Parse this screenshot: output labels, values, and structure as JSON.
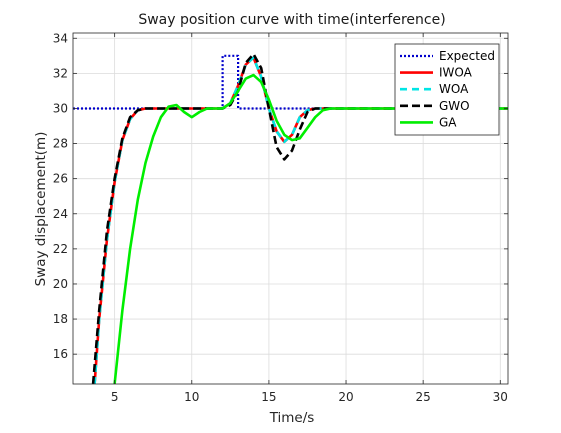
{
  "chart_data": {
    "type": "line",
    "title": "Sway position curve with time(interference)",
    "xlabel": "Time/s",
    "ylabel": "Sway displacement(m)",
    "xlim": [
      2.3,
      30.5
    ],
    "ylim": [
      14.3,
      34.3
    ],
    "xticks": [
      5,
      10,
      15,
      20,
      25,
      30
    ],
    "yticks": [
      16,
      18,
      20,
      22,
      24,
      26,
      28,
      30,
      32,
      34
    ],
    "xtick_labels": [
      "5",
      "10",
      "15",
      "20",
      "25",
      "30"
    ],
    "ytick_labels": [
      "16",
      "18",
      "20",
      "22",
      "24",
      "26",
      "28",
      "30",
      "32",
      "34"
    ],
    "grid": true,
    "legend_position": "top-right",
    "series": [
      {
        "name": "Expected",
        "color": "#0000cc",
        "style": "dotted",
        "x": [
          2.3,
          12.0,
          12.0,
          13.0,
          13.0,
          30.5
        ],
        "y": [
          30,
          30,
          33,
          33,
          30,
          30
        ]
      },
      {
        "name": "IWOA",
        "color": "#ff0000",
        "style": "solid",
        "x": [
          3.7,
          4.0,
          4.5,
          5.0,
          5.5,
          6.0,
          6.5,
          7.0,
          8.0,
          9.0,
          10.0,
          11.0,
          12.0,
          12.5,
          13.0,
          13.5,
          14.0,
          14.5,
          15.0,
          15.5,
          16.0,
          16.5,
          17.0,
          17.5,
          18.0,
          19.0,
          20.0,
          25.0,
          30.5
        ],
        "y": [
          14.3,
          18.0,
          22.5,
          25.8,
          28.2,
          29.4,
          29.9,
          30.0,
          30.0,
          30.0,
          30.0,
          30.0,
          30.0,
          30.3,
          31.3,
          32.5,
          32.9,
          31.8,
          30.0,
          28.7,
          28.1,
          28.5,
          29.5,
          29.9,
          30.0,
          30.0,
          30.0,
          30.0,
          30.0
        ]
      },
      {
        "name": "WOA",
        "color": "#00e5e5",
        "style": "dashed",
        "x": [
          3.7,
          4.0,
          4.5,
          5.0,
          5.5,
          6.0,
          6.5,
          7.0,
          8.0,
          9.0,
          10.0,
          11.0,
          12.0,
          12.5,
          13.0,
          13.5,
          14.0,
          14.5,
          15.0,
          15.5,
          16.0,
          16.5,
          17.0,
          17.5,
          18.0,
          19.0,
          20.0,
          25.0,
          30.5
        ],
        "y": [
          14.3,
          18.0,
          22.5,
          25.8,
          28.2,
          29.4,
          29.9,
          30.0,
          30.0,
          30.0,
          30.0,
          30.0,
          30.0,
          30.3,
          31.3,
          32.5,
          32.9,
          31.8,
          30.0,
          28.7,
          28.1,
          28.5,
          29.5,
          29.9,
          30.0,
          30.0,
          30.0,
          30.0,
          30.0
        ]
      },
      {
        "name": "GWO",
        "color": "#000000",
        "style": "dashed",
        "x": [
          3.6,
          4.0,
          4.5,
          5.0,
          5.5,
          6.0,
          6.5,
          7.0,
          8.0,
          9.0,
          10.0,
          11.0,
          12.0,
          12.5,
          13.0,
          13.5,
          14.0,
          14.5,
          15.0,
          15.5,
          16.0,
          16.5,
          17.0,
          17.5,
          18.0,
          19.0,
          20.0,
          25.0,
          30.5
        ],
        "y": [
          14.3,
          18.5,
          23.0,
          26.0,
          28.3,
          29.5,
          29.9,
          30.0,
          30.0,
          30.0,
          30.0,
          30.0,
          30.0,
          30.2,
          31.0,
          32.6,
          33.1,
          32.3,
          30.0,
          27.8,
          27.1,
          27.6,
          28.8,
          29.8,
          30.0,
          30.0,
          30.0,
          30.0,
          30.0
        ]
      },
      {
        "name": "GA",
        "color": "#00ee00",
        "style": "solid",
        "x": [
          5.0,
          5.5,
          6.0,
          6.5,
          7.0,
          7.5,
          8.0,
          8.5,
          9.0,
          9.5,
          10.0,
          10.5,
          11.0,
          11.5,
          12.0,
          12.5,
          13.0,
          13.5,
          14.0,
          14.5,
          15.0,
          15.5,
          16.0,
          16.5,
          17.0,
          17.5,
          18.0,
          18.5,
          19.0,
          20.0,
          25.0,
          30.5
        ],
        "y": [
          14.3,
          18.5,
          22.0,
          24.8,
          26.9,
          28.4,
          29.5,
          30.1,
          30.2,
          29.8,
          29.5,
          29.8,
          30.0,
          30.0,
          30.0,
          30.3,
          31.0,
          31.7,
          31.9,
          31.5,
          30.5,
          29.3,
          28.5,
          28.2,
          28.3,
          28.9,
          29.5,
          29.9,
          30.0,
          30.0,
          30.0,
          30.0
        ]
      }
    ]
  }
}
